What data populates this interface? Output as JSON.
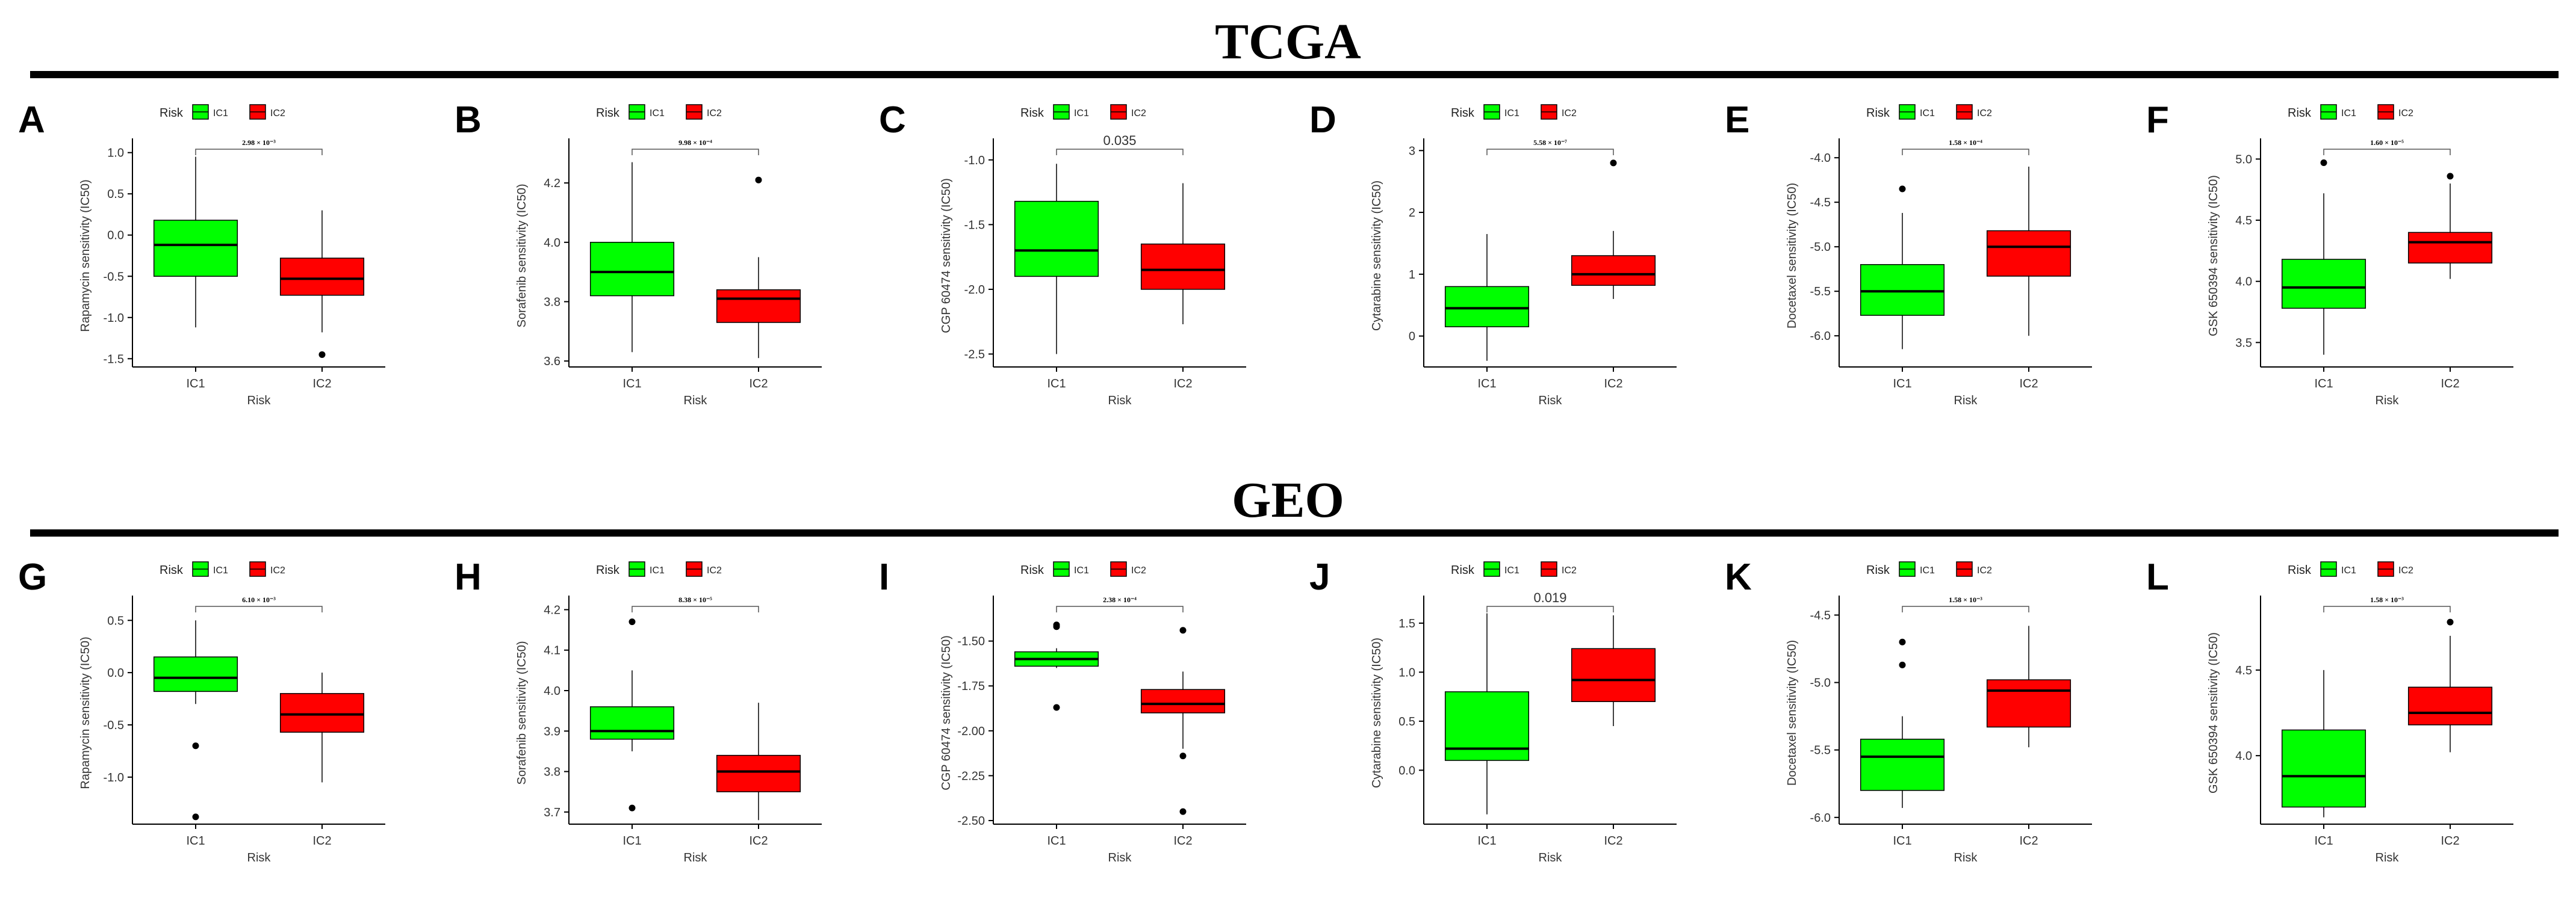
{
  "sections": {
    "tcga": "TCGA",
    "geo": "GEO"
  },
  "colors": {
    "ic1": "#00ff00",
    "ic2": "#ff0000",
    "axis": "#000000"
  },
  "legend": {
    "title": "Risk",
    "items": [
      "IC1",
      "IC2"
    ]
  },
  "chart_data": [
    {
      "label": "A",
      "type": "boxplot",
      "xlabel": "Risk",
      "ylabel": "Rapamycin sensitivity (IC50)",
      "categories": [
        "IC1",
        "IC2"
      ],
      "ylim": [
        -1.6,
        1.1
      ],
      "yticks": [
        -1.5,
        -1.0,
        -0.5,
        0.0,
        0.5,
        1.0
      ],
      "ticklabels": [
        "-1.5",
        "-1.0",
        "-0.5",
        "0.0",
        "0.5",
        "1.0"
      ],
      "pvalue": "2.98 × 10⁻³",
      "pstyle": "small",
      "series": [
        {
          "name": "IC1",
          "min": -1.12,
          "q1": -0.5,
          "median": -0.12,
          "q3": 0.18,
          "max": 0.95,
          "outliers": []
        },
        {
          "name": "IC2",
          "min": -1.18,
          "q1": -0.73,
          "median": -0.53,
          "q3": -0.28,
          "max": 0.3,
          "outliers": [
            -1.45
          ]
        }
      ]
    },
    {
      "label": "B",
      "type": "boxplot",
      "xlabel": "Risk",
      "ylabel": "Sorafenib sensitivity (IC50)",
      "categories": [
        "IC1",
        "IC2"
      ],
      "ylim": [
        3.58,
        4.33
      ],
      "yticks": [
        3.6,
        3.8,
        4.0,
        4.2
      ],
      "ticklabels": [
        "3.6",
        "3.8",
        "4.0",
        "4.2"
      ],
      "pvalue": "9.98 × 10⁻⁴",
      "pstyle": "small",
      "series": [
        {
          "name": "IC1",
          "min": 3.63,
          "q1": 3.82,
          "median": 3.9,
          "q3": 4.0,
          "max": 4.27,
          "outliers": []
        },
        {
          "name": "IC2",
          "min": 3.61,
          "q1": 3.73,
          "median": 3.81,
          "q3": 3.84,
          "max": 3.95,
          "outliers": [
            4.21
          ]
        }
      ]
    },
    {
      "label": "C",
      "type": "boxplot",
      "xlabel": "Risk",
      "ylabel": "CGP 60474 sensitivity (IC50)",
      "categories": [
        "IC1",
        "IC2"
      ],
      "ylim": [
        -2.6,
        -0.88
      ],
      "yticks": [
        -2.5,
        -2.0,
        -1.5,
        -1.0
      ],
      "ticklabels": [
        "-2.5",
        "-2.0",
        "-1.5",
        "-1.0"
      ],
      "pvalue": "0.035",
      "pstyle": "big",
      "series": [
        {
          "name": "IC1",
          "min": -2.5,
          "q1": -1.9,
          "median": -1.7,
          "q3": -1.32,
          "max": -1.03,
          "outliers": []
        },
        {
          "name": "IC2",
          "min": -2.27,
          "q1": -2.0,
          "median": -1.85,
          "q3": -1.65,
          "max": -1.18,
          "outliers": []
        }
      ]
    },
    {
      "label": "D",
      "type": "boxplot",
      "xlabel": "Risk",
      "ylabel": "Cytarabine sensitivity (IC50)",
      "categories": [
        "IC1",
        "IC2"
      ],
      "ylim": [
        -0.5,
        3.1
      ],
      "yticks": [
        0,
        1,
        2,
        3
      ],
      "ticklabels": [
        "0",
        "1",
        "2",
        "3"
      ],
      "pvalue": "5.58 × 10⁻⁷",
      "pstyle": "small",
      "series": [
        {
          "name": "IC1",
          "min": -0.4,
          "q1": 0.15,
          "median": 0.45,
          "q3": 0.8,
          "max": 1.65,
          "outliers": []
        },
        {
          "name": "IC2",
          "min": 0.6,
          "q1": 0.82,
          "median": 1.0,
          "q3": 1.3,
          "max": 1.7,
          "outliers": [
            2.8
          ]
        }
      ]
    },
    {
      "label": "E",
      "type": "boxplot",
      "xlabel": "Risk",
      "ylabel": "Docetaxel sensitivity (IC50)",
      "categories": [
        "IC1",
        "IC2"
      ],
      "ylim": [
        -6.35,
        -3.85
      ],
      "yticks": [
        -6.0,
        -5.5,
        -5.0,
        -4.5,
        -4.0
      ],
      "ticklabels": [
        "-6.0",
        "-5.5",
        "-5.0",
        "-4.5",
        "-4.0"
      ],
      "pvalue": "1.58 × 10⁻⁴",
      "pstyle": "small",
      "series": [
        {
          "name": "IC1",
          "min": -6.15,
          "q1": -5.77,
          "median": -5.5,
          "q3": -5.2,
          "max": -4.62,
          "outliers": [
            -4.35
          ]
        },
        {
          "name": "IC2",
          "min": -6.0,
          "q1": -5.33,
          "median": -5.0,
          "q3": -4.82,
          "max": -4.1,
          "outliers": []
        }
      ]
    },
    {
      "label": "F",
      "type": "boxplot",
      "xlabel": "Risk",
      "ylabel": "GSK 650394 sensitivity (IC50)",
      "categories": [
        "IC1",
        "IC2"
      ],
      "ylim": [
        3.3,
        5.12
      ],
      "yticks": [
        3.5,
        4.0,
        4.5,
        5.0
      ],
      "ticklabels": [
        "3.5",
        "4.0",
        "4.5",
        "5.0"
      ],
      "pvalue": "1.60 × 10⁻⁵",
      "pstyle": "small",
      "series": [
        {
          "name": "IC1",
          "min": 3.4,
          "q1": 3.78,
          "median": 3.95,
          "q3": 4.18,
          "max": 4.72,
          "outliers": [
            4.97
          ]
        },
        {
          "name": "IC2",
          "min": 4.02,
          "q1": 4.15,
          "median": 4.32,
          "q3": 4.4,
          "max": 4.8,
          "outliers": [
            4.86
          ]
        }
      ]
    },
    {
      "label": "G",
      "type": "boxplot",
      "xlabel": "Risk",
      "ylabel": "Rapamycin sensitivity (IC50)",
      "categories": [
        "IC1",
        "IC2"
      ],
      "ylim": [
        -1.45,
        0.68
      ],
      "yticks": [
        -1.0,
        -0.5,
        0.0,
        0.5
      ],
      "ticklabels": [
        "-1.0",
        "-0.5",
        "0.0",
        "0.5"
      ],
      "pvalue": "6.10 × 10⁻³",
      "pstyle": "small",
      "series": [
        {
          "name": "IC1",
          "min": -0.3,
          "q1": -0.18,
          "median": -0.05,
          "q3": 0.15,
          "max": 0.5,
          "outliers": [
            -0.7,
            -1.38
          ]
        },
        {
          "name": "IC2",
          "min": -1.05,
          "q1": -0.57,
          "median": -0.4,
          "q3": -0.2,
          "max": 0.0,
          "outliers": []
        }
      ]
    },
    {
      "label": "H",
      "type": "boxplot",
      "xlabel": "Risk",
      "ylabel": "Sorafenib sensitivity (IC50)",
      "categories": [
        "IC1",
        "IC2"
      ],
      "ylim": [
        3.67,
        4.22
      ],
      "yticks": [
        3.7,
        3.8,
        3.9,
        4.0,
        4.1,
        4.2
      ],
      "ticklabels": [
        "3.7",
        "3.8",
        "3.9",
        "4.0",
        "4.1",
        "4.2"
      ],
      "pvalue": "8.38 × 10⁻⁵",
      "pstyle": "small",
      "series": [
        {
          "name": "IC1",
          "min": 3.85,
          "q1": 3.88,
          "median": 3.9,
          "q3": 3.96,
          "max": 4.05,
          "outliers": [
            4.17,
            3.71
          ]
        },
        {
          "name": "IC2",
          "min": 3.68,
          "q1": 3.75,
          "median": 3.8,
          "q3": 3.84,
          "max": 3.97,
          "outliers": []
        }
      ]
    },
    {
      "label": "I",
      "type": "boxplot",
      "xlabel": "Risk",
      "ylabel": "CGP 60474 sensitivity (IC50)",
      "categories": [
        "IC1",
        "IC2"
      ],
      "ylim": [
        -2.52,
        -1.28
      ],
      "yticks": [
        -2.5,
        -2.25,
        -2.0,
        -1.75,
        -1.5
      ],
      "ticklabels": [
        "-2.50",
        "-2.25",
        "-2.00",
        "-1.75",
        "-1.50"
      ],
      "pvalue": "2.38 × 10⁻⁴",
      "pstyle": "small",
      "series": [
        {
          "name": "IC1",
          "min": -1.65,
          "q1": -1.64,
          "median": -1.6,
          "q3": -1.56,
          "max": -1.54,
          "outliers": [
            -1.41,
            -1.42,
            -1.87
          ]
        },
        {
          "name": "IC2",
          "min": -2.1,
          "q1": -1.9,
          "median": -1.85,
          "q3": -1.77,
          "max": -1.67,
          "outliers": [
            -1.44,
            -2.14,
            -2.45
          ]
        }
      ]
    },
    {
      "label": "J",
      "type": "boxplot",
      "xlabel": "Risk",
      "ylabel": "Cytarabine sensitivity (IC50)",
      "categories": [
        "IC1",
        "IC2"
      ],
      "ylim": [
        -0.55,
        1.72
      ],
      "yticks": [
        0.0,
        0.5,
        1.0,
        1.5
      ],
      "ticklabels": [
        "0.0",
        "0.5",
        "1.0",
        "1.5"
      ],
      "pvalue": "0.019",
      "pstyle": "big",
      "series": [
        {
          "name": "IC1",
          "min": -0.45,
          "q1": 0.1,
          "median": 0.22,
          "q3": 0.8,
          "max": 1.6,
          "outliers": []
        },
        {
          "name": "IC2",
          "min": 0.45,
          "q1": 0.7,
          "median": 0.92,
          "q3": 1.24,
          "max": 1.58,
          "outliers": []
        }
      ]
    },
    {
      "label": "K",
      "type": "boxplot",
      "xlabel": "Risk",
      "ylabel": "Docetaxel sensitivity (IC50)",
      "categories": [
        "IC1",
        "IC2"
      ],
      "ylim": [
        -6.05,
        -4.4
      ],
      "yticks": [
        -6.0,
        -5.5,
        -5.0,
        -4.5
      ],
      "ticklabels": [
        "-6.0",
        "-5.5",
        "-5.0",
        "-4.5"
      ],
      "pvalue": "1.58 × 10⁻³",
      "pstyle": "small",
      "series": [
        {
          "name": "IC1",
          "min": -5.93,
          "q1": -5.8,
          "median": -5.55,
          "q3": -5.42,
          "max": -5.25,
          "outliers": [
            -4.7,
            -4.87
          ]
        },
        {
          "name": "IC2",
          "min": -5.48,
          "q1": -5.33,
          "median": -5.06,
          "q3": -4.98,
          "max": -4.58,
          "outliers": []
        }
      ]
    },
    {
      "label": "L",
      "type": "boxplot",
      "xlabel": "Risk",
      "ylabel": "GSK 650394 sensitivity (IC50)",
      "categories": [
        "IC1",
        "IC2"
      ],
      "ylim": [
        3.6,
        4.9
      ],
      "yticks": [
        4.0,
        4.5
      ],
      "ticklabels": [
        "4.0",
        "4.5"
      ],
      "pvalue": "1.58 × 10⁻³",
      "pstyle": "small",
      "series": [
        {
          "name": "IC1",
          "min": 3.64,
          "q1": 3.7,
          "median": 3.88,
          "q3": 4.15,
          "max": 4.5,
          "outliers": []
        },
        {
          "name": "IC2",
          "min": 4.02,
          "q1": 4.18,
          "median": 4.25,
          "q3": 4.4,
          "max": 4.7,
          "outliers": [
            4.78
          ]
        }
      ]
    }
  ]
}
